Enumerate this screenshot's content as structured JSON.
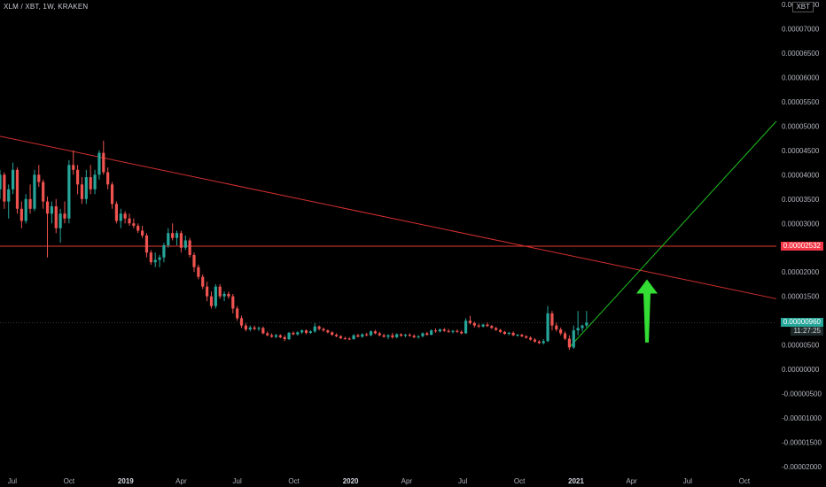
{
  "header": {
    "symbol": "XLM / XBT, 1W, KRAKEN",
    "currency": "XBT"
  },
  "price_axis": {
    "labels": [
      "0.00007500",
      "0.00007000",
      "0.00006500",
      "0.00006000",
      "0.00005500",
      "0.00005000",
      "0.00004500",
      "0.00004000",
      "0.00003500",
      "0.00003000",
      "0.00002500",
      "0.00002000",
      "0.00001500",
      "0.00001000",
      "0.00000500",
      "0.00000000",
      "-0.00000500",
      "-0.00001000",
      "-0.00001500",
      "-0.00002000"
    ]
  },
  "time_axis": {
    "labels": [
      "Jul",
      "Oct",
      "2019",
      "Apr",
      "Jul",
      "Oct",
      "2020",
      "Apr",
      "Jul",
      "Oct",
      "2021",
      "Apr",
      "Jul",
      "Oct"
    ],
    "bold": [
      false,
      false,
      true,
      false,
      false,
      false,
      true,
      false,
      false,
      false,
      true,
      false,
      false,
      false
    ]
  },
  "tags": {
    "horizontal_level": "0.00002532",
    "last_price": "0.00000960",
    "countdown": "11:27:25"
  },
  "colors": {
    "background": "#000000",
    "up": "#26a69a",
    "down": "#ef5350",
    "trendline_down": "#d32f2f",
    "horizontal_line": "#e53935",
    "trendline_up": "#1fbf1f",
    "arrow": "#33dd33"
  },
  "chart_data": {
    "type": "candlestick",
    "title": "XLM / XBT, 1W, KRAKEN",
    "xlabel": "",
    "ylabel": "",
    "ylim": [
      -2e-05,
      7.5e-05
    ],
    "x_range": [
      "2018-06-11",
      "2021-11-22"
    ],
    "grid": false,
    "ohlc": [
      [
        "2018-06-11",
        3.7e-05,
        4.1e-05,
        3.5e-05,
        4e-05
      ],
      [
        "2018-06-18",
        4e-05,
        4.05e-05,
        3.3e-05,
        3.45e-05
      ],
      [
        "2018-06-25",
        3.45e-05,
        3.8e-05,
        3.1e-05,
        3.7e-05
      ],
      [
        "2018-07-02",
        3.7e-05,
        4.25e-05,
        3.6e-05,
        4.1e-05
      ],
      [
        "2018-07-09",
        4.1e-05,
        4.15e-05,
        3.2e-05,
        3.3e-05
      ],
      [
        "2018-07-16",
        3.3e-05,
        3.45e-05,
        2.9e-05,
        3.05e-05
      ],
      [
        "2018-07-23",
        3.05e-05,
        3.6e-05,
        3e-05,
        3.5e-05
      ],
      [
        "2018-07-30",
        3.5e-05,
        3.8e-05,
        3.2e-05,
        3.3e-05
      ],
      [
        "2018-08-06",
        3.3e-05,
        4.1e-05,
        3.25e-05,
        4e-05
      ],
      [
        "2018-08-13",
        4e-05,
        4.2e-05,
        3.75e-05,
        3.85e-05
      ],
      [
        "2018-08-20",
        3.85e-05,
        3.9e-05,
        3.3e-05,
        3.45e-05
      ],
      [
        "2018-08-27",
        3.45e-05,
        3.55e-05,
        2.3e-05,
        3.2e-05
      ],
      [
        "2018-09-03",
        3.2e-05,
        3.45e-05,
        3e-05,
        3.35e-05
      ],
      [
        "2018-09-10",
        3.35e-05,
        3.5e-05,
        2.8e-05,
        2.9e-05
      ],
      [
        "2018-09-17",
        2.9e-05,
        3.3e-05,
        2.6e-05,
        3.2e-05
      ],
      [
        "2018-09-24",
        3.2e-05,
        3.45e-05,
        3e-05,
        3.1e-05
      ],
      [
        "2018-10-01",
        3.1e-05,
        4.3e-05,
        3e-05,
        4.2e-05
      ],
      [
        "2018-10-08",
        4.2e-05,
        4.5e-05,
        4e-05,
        4.1e-05
      ],
      [
        "2018-10-15",
        4.1e-05,
        4.2e-05,
        3.6e-05,
        3.8e-05
      ],
      [
        "2018-10-22",
        3.8e-05,
        3.95e-05,
        3.4e-05,
        3.5e-05
      ],
      [
        "2018-10-29",
        3.5e-05,
        4.1e-05,
        3.4e-05,
        3.95e-05
      ],
      [
        "2018-11-05",
        3.95e-05,
        4.2e-05,
        3.6e-05,
        3.7e-05
      ],
      [
        "2018-11-12",
        3.7e-05,
        4.1e-05,
        3.6e-05,
        4e-05
      ],
      [
        "2018-11-19",
        4e-05,
        4.5e-05,
        3.9e-05,
        4.45e-05
      ],
      [
        "2018-11-26",
        4.45e-05,
        4.7e-05,
        4e-05,
        4.05e-05
      ],
      [
        "2018-12-03",
        4.05e-05,
        4.15e-05,
        3.7e-05,
        3.8e-05
      ],
      [
        "2018-12-10",
        3.8e-05,
        3.85e-05,
        3.3e-05,
        3.4e-05
      ],
      [
        "2018-12-17",
        3.4e-05,
        3.45e-05,
        3e-05,
        3.05e-05
      ],
      [
        "2018-12-24",
        3.05e-05,
        3.3e-05,
        2.9e-05,
        3.2e-05
      ],
      [
        "2018-12-31",
        3.2e-05,
        3.25e-05,
        3e-05,
        3.1e-05
      ],
      [
        "2019-01-07",
        3.1e-05,
        3.2e-05,
        2.95e-05,
        3e-05
      ],
      [
        "2019-01-14",
        3e-05,
        3.1e-05,
        2.9e-05,
        2.95e-05
      ],
      [
        "2019-01-21",
        2.95e-05,
        3e-05,
        2.8e-05,
        2.85e-05
      ],
      [
        "2019-01-28",
        2.85e-05,
        2.95e-05,
        2.7e-05,
        2.75e-05
      ],
      [
        "2019-02-04",
        2.75e-05,
        2.8e-05,
        2.3e-05,
        2.4e-05
      ],
      [
        "2019-02-11",
        2.4e-05,
        2.45e-05,
        2.15e-05,
        2.2e-05
      ],
      [
        "2019-02-18",
        2.2e-05,
        2.4e-05,
        2.1e-05,
        2.25e-05
      ],
      [
        "2019-02-25",
        2.25e-05,
        2.35e-05,
        2.1e-05,
        2.3e-05
      ],
      [
        "2019-03-04",
        2.3e-05,
        2.6e-05,
        2.2e-05,
        2.55e-05
      ],
      [
        "2019-03-11",
        2.55e-05,
        2.9e-05,
        2.5e-05,
        2.8e-05
      ],
      [
        "2019-03-18",
        2.8e-05,
        3e-05,
        2.65e-05,
        2.7e-05
      ],
      [
        "2019-03-25",
        2.7e-05,
        2.85e-05,
        2.55e-05,
        2.8e-05
      ],
      [
        "2019-04-01",
        2.8e-05,
        2.85e-05,
        2.4e-05,
        2.5e-05
      ],
      [
        "2019-04-08",
        2.5e-05,
        2.75e-05,
        2.45e-05,
        2.65e-05
      ],
      [
        "2019-04-15",
        2.65e-05,
        2.7e-05,
        2.3e-05,
        2.35e-05
      ],
      [
        "2019-04-22",
        2.35e-05,
        2.4e-05,
        2e-05,
        2.1e-05
      ],
      [
        "2019-04-29",
        2.1e-05,
        2.15e-05,
        1.85e-05,
        1.9e-05
      ],
      [
        "2019-05-06",
        1.9e-05,
        1.95e-05,
        1.65e-05,
        1.7e-05
      ],
      [
        "2019-05-13",
        1.7e-05,
        1.8e-05,
        1.4e-05,
        1.5e-05
      ],
      [
        "2019-05-20",
        1.5e-05,
        1.6e-05,
        1.25e-05,
        1.3e-05
      ],
      [
        "2019-05-27",
        1.3e-05,
        1.75e-05,
        1.25e-05,
        1.7e-05
      ],
      [
        "2019-06-03",
        1.7e-05,
        1.75e-05,
        1.45e-05,
        1.5e-05
      ],
      [
        "2019-06-10",
        1.5e-05,
        1.6e-05,
        1.4e-05,
        1.55e-05
      ],
      [
        "2019-06-17",
        1.55e-05,
        1.6e-05,
        1.45e-05,
        1.5e-05
      ],
      [
        "2019-06-24",
        1.5e-05,
        1.55e-05,
        1.15e-05,
        1.25e-05
      ],
      [
        "2019-07-01",
        1.25e-05,
        1.3e-05,
        1e-05,
        1.05e-05
      ],
      [
        "2019-07-08",
        1.05e-05,
        1.1e-05,
        8.5e-06,
        9e-06
      ],
      [
        "2019-07-15",
        9e-06,
        9.5e-06,
        7.8e-06,
        8.2e-06
      ],
      [
        "2019-07-22",
        8.2e-06,
        9e-06,
        7.8e-06,
        8.6e-06
      ],
      [
        "2019-07-29",
        8.6e-06,
        9e-06,
        8e-06,
        8.3e-06
      ],
      [
        "2019-08-05",
        8.3e-06,
        8.8e-06,
        7.9e-06,
        8.5e-06
      ],
      [
        "2019-08-12",
        8.5e-06,
        8.8e-06,
        7.2e-06,
        7.4e-06
      ],
      [
        "2019-08-19",
        7.4e-06,
        7.8e-06,
        6.8e-06,
        7e-06
      ],
      [
        "2019-08-26",
        7e-06,
        7.4e-06,
        6.5e-06,
        6.7e-06
      ],
      [
        "2019-09-02",
        6.7e-06,
        7.3e-06,
        6.4e-06,
        7e-06
      ],
      [
        "2019-09-09",
        7e-06,
        7.2e-06,
        6.4e-06,
        6.6e-06
      ],
      [
        "2019-09-16",
        6.6e-06,
        7e-06,
        5.8e-06,
        6.2e-06
      ],
      [
        "2019-09-23",
        6.2e-06,
        7.7e-06,
        6e-06,
        7.5e-06
      ],
      [
        "2019-09-30",
        7.5e-06,
        7.8e-06,
        7e-06,
        7.2e-06
      ],
      [
        "2019-10-07",
        7.2e-06,
        7.8e-06,
        6.9e-06,
        7.6e-06
      ],
      [
        "2019-10-14",
        7.6e-06,
        8.2e-06,
        7.3e-06,
        8e-06
      ],
      [
        "2019-10-21",
        8e-06,
        8.2e-06,
        7.2e-06,
        7.5e-06
      ],
      [
        "2019-10-28",
        7.5e-06,
        8e-06,
        7.3e-06,
        7.8e-06
      ],
      [
        "2019-11-04",
        7.8e-06,
        9.5e-06,
        7.5e-06,
        8.8e-06
      ],
      [
        "2019-11-11",
        8.8e-06,
        9e-06,
        8e-06,
        8.3e-06
      ],
      [
        "2019-11-18",
        8.3e-06,
        8.6e-06,
        7.7e-06,
        8e-06
      ],
      [
        "2019-11-25",
        8e-06,
        8.2e-06,
        7.4e-06,
        7.6e-06
      ],
      [
        "2019-12-02",
        7.6e-06,
        7.8e-06,
        6.9e-06,
        7.1e-06
      ],
      [
        "2019-12-09",
        7.1e-06,
        7.4e-06,
        6.6e-06,
        6.8e-06
      ],
      [
        "2019-12-16",
        6.8e-06,
        7e-06,
        6.2e-06,
        6.4e-06
      ],
      [
        "2019-12-23",
        6.4e-06,
        6.7e-06,
        6.1e-06,
        6.3e-06
      ],
      [
        "2019-12-30",
        6.3e-06,
        6.6e-06,
        6e-06,
        6.2e-06
      ],
      [
        "2020-01-06",
        6.2e-06,
        7.2e-06,
        6.1e-06,
        7e-06
      ],
      [
        "2020-01-13",
        7e-06,
        7.3e-06,
        6.6e-06,
        6.7e-06
      ],
      [
        "2020-01-20",
        6.7e-06,
        7.4e-06,
        6.5e-06,
        7.2e-06
      ],
      [
        "2020-01-27",
        7.2e-06,
        7.5e-06,
        6.8e-06,
        7e-06
      ],
      [
        "2020-02-03",
        7e-06,
        8e-06,
        6.8e-06,
        7.8e-06
      ],
      [
        "2020-02-10",
        7.8e-06,
        8.1e-06,
        7.2e-06,
        7.4e-06
      ],
      [
        "2020-02-17",
        7.4e-06,
        7.7e-06,
        6.8e-06,
        7e-06
      ],
      [
        "2020-02-24",
        7e-06,
        7.3e-06,
        6.5e-06,
        6.7e-06
      ],
      [
        "2020-03-02",
        6.7e-06,
        7.2e-06,
        6.2e-06,
        7e-06
      ],
      [
        "2020-03-09",
        7e-06,
        7.5e-06,
        6.3e-06,
        6.6e-06
      ],
      [
        "2020-03-16",
        6.6e-06,
        7.4e-06,
        6.4e-06,
        7.2e-06
      ],
      [
        "2020-03-23",
        7.2e-06,
        7.4e-06,
        6.7e-06,
        6.9e-06
      ],
      [
        "2020-03-30",
        6.9e-06,
        7.3e-06,
        6.6e-06,
        7.1e-06
      ],
      [
        "2020-04-06",
        7.1e-06,
        7.4e-06,
        6.7e-06,
        6.9e-06
      ],
      [
        "2020-04-13",
        6.9e-06,
        7.2e-06,
        6.4e-06,
        6.6e-06
      ],
      [
        "2020-04-20",
        6.6e-06,
        7e-06,
        6.3e-06,
        6.8e-06
      ],
      [
        "2020-04-27",
        6.8e-06,
        7.6e-06,
        6.6e-06,
        7.4e-06
      ],
      [
        "2020-05-04",
        7.4e-06,
        7.7e-06,
        6.9e-06,
        7.1e-06
      ],
      [
        "2020-05-11",
        7.1e-06,
        8.2e-06,
        7e-06,
        8e-06
      ],
      [
        "2020-05-18",
        8e-06,
        8.4e-06,
        7.5e-06,
        7.8e-06
      ],
      [
        "2020-05-25",
        7.8e-06,
        8.4e-06,
        7.6e-06,
        8.2e-06
      ],
      [
        "2020-06-01",
        8.2e-06,
        8.5e-06,
        7.7e-06,
        7.9e-06
      ],
      [
        "2020-06-08",
        7.9e-06,
        8.3e-06,
        7.5e-06,
        7.7e-06
      ],
      [
        "2020-06-15",
        7.7e-06,
        8.1e-06,
        7.4e-06,
        7.9e-06
      ],
      [
        "2020-06-22",
        7.9e-06,
        8.2e-06,
        7.5e-06,
        7.7e-06
      ],
      [
        "2020-06-29",
        7.7e-06,
        8e-06,
        7.2e-06,
        7.4e-06
      ],
      [
        "2020-07-06",
        7.4e-06,
        1.05e-05,
        7.3e-06,
        1e-05
      ],
      [
        "2020-07-13",
        1e-05,
        1.1e-05,
        9.2e-06,
        9.5e-06
      ],
      [
        "2020-07-20",
        9.5e-06,
        9.8e-06,
        8.6e-06,
        9e-06
      ],
      [
        "2020-07-27",
        9e-06,
        9.4e-06,
        8.5e-06,
        8.8e-06
      ],
      [
        "2020-08-03",
        8.8e-06,
        9.4e-06,
        8.6e-06,
        9.2e-06
      ],
      [
        "2020-08-10",
        9.2e-06,
        9.6e-06,
        8.7e-06,
        8.9e-06
      ],
      [
        "2020-08-17",
        8.9e-06,
        9.1e-06,
        8.3e-06,
        8.5e-06
      ],
      [
        "2020-08-24",
        8.5e-06,
        8.7e-06,
        7.9e-06,
        8.1e-06
      ],
      [
        "2020-08-31",
        8.1e-06,
        8.3e-06,
        7.5e-06,
        7.7e-06
      ],
      [
        "2020-09-07",
        7.7e-06,
        7.9e-06,
        7.1e-06,
        7.3e-06
      ],
      [
        "2020-09-14",
        7.3e-06,
        7.7e-06,
        7e-06,
        7.5e-06
      ],
      [
        "2020-09-21",
        7.5e-06,
        7.8e-06,
        6.8e-06,
        7e-06
      ],
      [
        "2020-09-28",
        7e-06,
        7.3e-06,
        6.7e-06,
        7.1e-06
      ],
      [
        "2020-10-05",
        7.1e-06,
        7.3e-06,
        6.6e-06,
        6.8e-06
      ],
      [
        "2020-10-12",
        6.8e-06,
        7e-06,
        6.3e-06,
        6.5e-06
      ],
      [
        "2020-10-19",
        6.5e-06,
        6.8e-06,
        5.9e-06,
        6.1e-06
      ],
      [
        "2020-10-26",
        6.1e-06,
        6.4e-06,
        5.5e-06,
        5.7e-06
      ],
      [
        "2020-11-02",
        5.7e-06,
        6e-06,
        5.2e-06,
        5.4e-06
      ],
      [
        "2020-11-09",
        5.4e-06,
        6.2e-06,
        5.1e-06,
        5.8e-06
      ],
      [
        "2020-11-16",
        5.8e-06,
        1.3e-05,
        5.6e-06,
        1.15e-05
      ],
      [
        "2020-11-23",
        1.15e-05,
        1.2e-05,
        8e-06,
        9e-06
      ],
      [
        "2020-11-30",
        9e-06,
        9.6e-06,
        7.8e-06,
        8.2e-06
      ],
      [
        "2020-12-07",
        8.2e-06,
        8.6e-06,
        7e-06,
        7.4e-06
      ],
      [
        "2020-12-14",
        7.4e-06,
        7.8e-06,
        6e-06,
        6.3e-06
      ],
      [
        "2020-12-21",
        6.3e-06,
        7e-06,
        4e-06,
        4.5e-06
      ],
      [
        "2020-12-28",
        4.5e-06,
        9e-06,
        4.2e-06,
        8e-06
      ],
      [
        "2021-01-04",
        8e-06,
        1.2e-05,
        7e-06,
        8.5e-06
      ],
      [
        "2021-01-11",
        8.5e-06,
        9.2e-06,
        7.8e-06,
        9e-06
      ],
      [
        "2021-01-18",
        9e-06,
        1.2e-05,
        8.6e-06,
        9.6e-06
      ]
    ],
    "lines": [
      {
        "name": "descending-trendline",
        "from": [
          "2018-05-01",
          4.9e-05
        ],
        "to": [
          "2021-11-22",
          1.45e-05
        ]
      },
      {
        "name": "horizontal-level",
        "value": 2.532e-05
      },
      {
        "name": "ascending-trendline",
        "from": [
          "2020-12-21",
          4.5e-06
        ],
        "to": [
          "2021-11-22",
          5.1e-05
        ]
      },
      {
        "name": "last-price-line",
        "value": 9.6e-06
      }
    ],
    "annotations": [
      {
        "type": "arrow-up",
        "x": "2021-04-26",
        "y_bottom": 5.5e-06,
        "y_top": 1.85e-05
      }
    ]
  }
}
